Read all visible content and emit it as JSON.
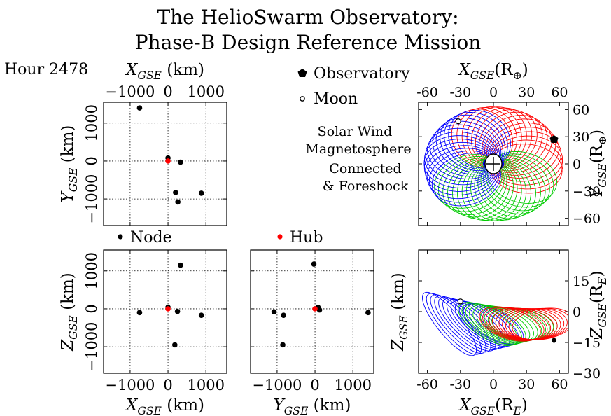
{
  "title": {
    "line1": "The HelioSwarm Observatory:",
    "line2": "Phase-B Design Reference Mission"
  },
  "hour_label": "Hour 2478",
  "legend": {
    "observatory": "Observatory",
    "moon": "Moon",
    "node": "Node",
    "hub": "Hub"
  },
  "region_labels": {
    "solar_wind": "Solar Wind",
    "magnetosphere": "Magnetosphere",
    "connected_1": "Connected",
    "connected_2": "& Foreshock"
  },
  "colors": {
    "solar_wind": "#ff0000",
    "magnetosphere": "#0000ff",
    "connected": "#00cc00",
    "node": "#000000",
    "hub": "#ff0000"
  },
  "chart_data": [
    {
      "id": "xy-km",
      "type": "scatter",
      "xlabel": {
        "var": "X",
        "sub": "GSE",
        "unit": " (km)"
      },
      "ylabel": {
        "var": "Y",
        "sub": "GSE",
        "unit": " (km)"
      },
      "xlim": [
        -1700,
        1550
      ],
      "ylim": [
        -1700,
        1550
      ],
      "xticks": [
        -1000,
        0,
        1000
      ],
      "xticklabels": [
        "−1000",
        "0",
        "1000"
      ],
      "yticks": [
        -1000,
        0,
        1000
      ],
      "yticklabels": [
        "−1000",
        "0",
        "1000"
      ],
      "grid": true,
      "nodes": [
        [
          -750,
          1400
        ],
        [
          0,
          80
        ],
        [
          330,
          -30
        ],
        [
          200,
          -830
        ],
        [
          880,
          -850
        ],
        [
          260,
          -1080
        ]
      ],
      "hub": [
        0,
        0
      ]
    },
    {
      "id": "xz-km",
      "type": "scatter",
      "xlabel": {
        "var": "X",
        "sub": "GSE",
        "unit": " (km)"
      },
      "ylabel": {
        "var": "Z",
        "sub": "GSE",
        "unit": " (km)"
      },
      "xlim": [
        -1700,
        1550
      ],
      "ylim": [
        -1700,
        1550
      ],
      "xticks": [
        -1000,
        0,
        1000
      ],
      "xticklabels": [
        "−1000",
        "0",
        "1000"
      ],
      "yticks": [
        -1000,
        0,
        1000
      ],
      "yticklabels": [
        "−1000",
        "0",
        "1000"
      ],
      "grid": true,
      "nodes": [
        [
          330,
          1150
        ],
        [
          -750,
          -100
        ],
        [
          0,
          40
        ],
        [
          250,
          -70
        ],
        [
          880,
          -170
        ],
        [
          180,
          -950
        ]
      ],
      "hub": [
        0,
        0
      ]
    },
    {
      "id": "yz-km",
      "type": "scatter",
      "xlabel": {
        "var": "Y",
        "sub": "GSE",
        "unit": " (km)"
      },
      "ylabel": {
        "var": "Z",
        "sub": "GSE",
        "unit": " (km)"
      },
      "xlim": [
        -1700,
        1550
      ],
      "ylim": [
        -1700,
        1550
      ],
      "xticks": [
        -1000,
        0,
        1000
      ],
      "xticklabels": [
        "−1000",
        "0",
        "1000"
      ],
      "grid": true,
      "nodes": [
        [
          -30,
          1180
        ],
        [
          -1080,
          -80
        ],
        [
          -830,
          -170
        ],
        [
          80,
          40
        ],
        [
          120,
          -30
        ],
        [
          1400,
          -100
        ],
        [
          -850,
          -950
        ]
      ],
      "hub": [
        0,
        0
      ]
    },
    {
      "id": "xy-re",
      "type": "line",
      "xlabel": {
        "var": "X",
        "sub": "GSE",
        "unit": "(R",
        "unit_sub": "⊕",
        "close": ")"
      },
      "ylabel": {
        "var": "Y",
        "sub": "GSE",
        "unit": "(R",
        "unit_sub": "⊕",
        "close": ")"
      },
      "xlim": [
        -68,
        68
      ],
      "ylim": [
        -68,
        68
      ],
      "xticks": [
        -60,
        -30,
        0,
        30,
        60
      ],
      "xticklabels": [
        "-60",
        "-30",
        "0",
        "30",
        "60"
      ],
      "yticks": [
        -60,
        -30,
        0,
        30,
        60
      ],
      "yticklabels": [
        "−60",
        "−30",
        "0",
        "30",
        "60"
      ],
      "observatory": [
        55,
        27
      ],
      "moon": [
        -32,
        47
      ]
    },
    {
      "id": "xz-re",
      "type": "line",
      "xlabel": {
        "var": "X",
        "sub": "GSE",
        "unit": "(R",
        "unit_sub": "E",
        "close": ")"
      },
      "ylabel": {
        "var": "Z",
        "sub": "GSE",
        "unit": "(R",
        "unit_sub": "E",
        "close": ")"
      },
      "xlim": [
        -68,
        68
      ],
      "ylim": [
        -30,
        30
      ],
      "xticks": [
        -60,
        -30,
        0,
        30,
        60
      ],
      "xticklabels": [
        "-60",
        "-30",
        "0",
        "30",
        "60"
      ],
      "yticks": [
        -30,
        -15,
        0,
        15
      ],
      "yticklabels": [
        "−30",
        "−15",
        "0",
        "15"
      ],
      "observatory": [
        55,
        -14
      ],
      "moon": [
        -30,
        5
      ]
    }
  ]
}
